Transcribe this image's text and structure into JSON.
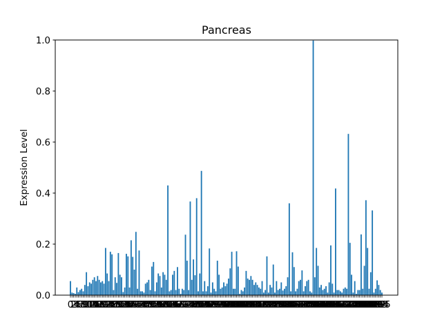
{
  "chart_data": {
    "type": "bar",
    "title": "Pancreas",
    "xlabel": "",
    "ylabel": "Expression Level",
    "ylim": [
      0,
      1.0
    ],
    "yticks": [
      "0.0",
      "0.2",
      "0.4",
      "0.6",
      "0.8",
      "1.0"
    ],
    "grid": false,
    "bar_color": "#1f77b4",
    "values": [
      0.055,
      0.01,
      0.008,
      0.005,
      0.03,
      0.012,
      0.02,
      0.025,
      0.015,
      0.04,
      0.09,
      0.035,
      0.05,
      0.045,
      0.06,
      0.07,
      0.055,
      0.075,
      0.06,
      0.05,
      0.055,
      0.045,
      0.185,
      0.085,
      0.055,
      0.17,
      0.16,
      0.02,
      0.07,
      0.048,
      0.165,
      0.08,
      0.07,
      0.012,
      0.03,
      0.162,
      0.152,
      0.03,
      0.215,
      0.15,
      0.1,
      0.248,
      0.025,
      0.175,
      0.015,
      0.015,
      0.01,
      0.045,
      0.05,
      0.06,
      0.02,
      0.112,
      0.13,
      0.015,
      0.05,
      0.085,
      0.075,
      0.03,
      0.09,
      0.08,
      0.06,
      0.43,
      0.015,
      0.02,
      0.08,
      0.095,
      0.02,
      0.11,
      0.025,
      0.005,
      0.025,
      0.02,
      0.237,
      0.135,
      0.02,
      0.367,
      0.06,
      0.14,
      0.078,
      0.38,
      0.015,
      0.085,
      0.487,
      0.015,
      0.055,
      0.015,
      0.035,
      0.183,
      0.01,
      0.05,
      0.025,
      0.015,
      0.135,
      0.08,
      0.025,
      0.03,
      0.05,
      0.035,
      0.045,
      0.065,
      0.105,
      0.17,
      0.025,
      0.025,
      0.172,
      0.112,
      0.005,
      0.02,
      0.015,
      0.03,
      0.095,
      0.065,
      0.06,
      0.075,
      0.06,
      0.04,
      0.05,
      0.04,
      0.03,
      0.025,
      0.055,
      0.01,
      0.02,
      0.152,
      0.01,
      0.04,
      0.03,
      0.12,
      0.01,
      0.055,
      0.02,
      0.025,
      0.05,
      0.018,
      0.025,
      0.035,
      0.07,
      0.36,
      0.015,
      0.168,
      0.11,
      0.015,
      0.025,
      0.055,
      0.06,
      0.097,
      0.015,
      0.035,
      0.055,
      0.06,
      0.015,
      0.01,
      0.998,
      0.07,
      0.185,
      0.115,
      0.03,
      0.04,
      0.02,
      0.025,
      0.035,
      0.01,
      0.05,
      0.195,
      0.045,
      0.01,
      0.418,
      0.02,
      0.02,
      0.015,
      0.01,
      0.025,
      0.03,
      0.025,
      0.632,
      0.205,
      0.08,
      0.01,
      0.055,
      0.005,
      0.02,
      0.02,
      0.238,
      0.025,
      0.115,
      0.372,
      0.185,
      0.025,
      0.09,
      0.332,
      0.01,
      0.025,
      0.058,
      0.04,
      0.02,
      0.01
    ]
  }
}
